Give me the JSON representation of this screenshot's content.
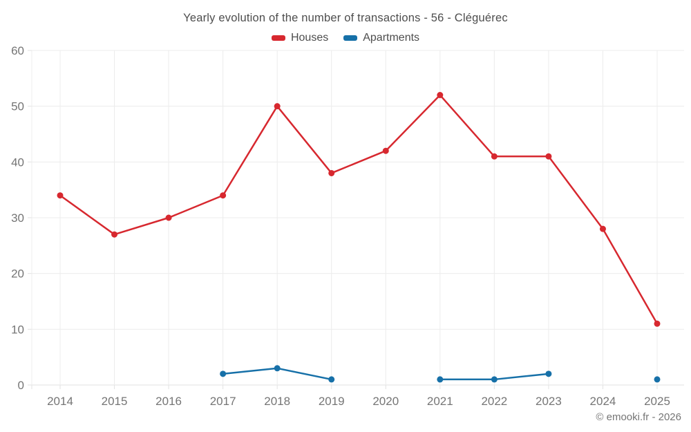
{
  "title": "Yearly evolution of the number of transactions - 56 - Cléguérec",
  "footer": {
    "credit": "© emooki.fr - 2026"
  },
  "colors": {
    "houses": "#d7282f",
    "apartments": "#1670a8",
    "grid": "#ececec",
    "axis_line": "#e2e2e2",
    "tick_text": "#757575",
    "title_text": "#4d4d4d",
    "background": "#ffffff"
  },
  "chart_data": {
    "type": "line",
    "title": "Yearly evolution of the number of transactions - 56 - Cléguérec",
    "xlabel": "",
    "ylabel": "",
    "categories": [
      "2014",
      "2015",
      "2016",
      "2017",
      "2018",
      "2019",
      "2020",
      "2021",
      "2022",
      "2023",
      "2024",
      "2025"
    ],
    "series": [
      {
        "name": "Houses",
        "color": "#d7282f",
        "values": [
          34,
          27,
          30,
          34,
          50,
          38,
          42,
          52,
          41,
          41,
          28,
          11
        ]
      },
      {
        "name": "Apartments",
        "color": "#1670a8",
        "values": [
          null,
          null,
          null,
          2,
          3,
          1,
          null,
          1,
          1,
          2,
          null,
          1
        ]
      }
    ],
    "ylim": [
      0,
      60
    ],
    "yticks": [
      0,
      10,
      20,
      30,
      40,
      50,
      60
    ],
    "grid": true,
    "legend_position": "top",
    "marker": "circle"
  }
}
